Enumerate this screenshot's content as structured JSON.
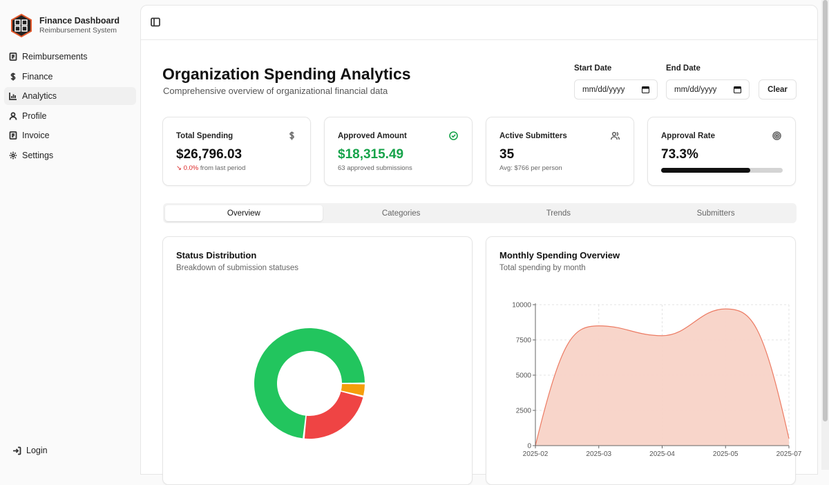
{
  "brand": {
    "title": "Finance Dashboard",
    "subtitle": "Reimbursement System"
  },
  "sidebar": {
    "items": [
      {
        "label": "Reimbursements",
        "icon": "receipt-icon"
      },
      {
        "label": "Finance",
        "icon": "dollar-icon"
      },
      {
        "label": "Analytics",
        "icon": "bar-chart-icon",
        "active": true
      },
      {
        "label": "Profile",
        "icon": "user-icon"
      },
      {
        "label": "Invoice",
        "icon": "receipt-icon"
      },
      {
        "label": "Settings",
        "icon": "gear-icon"
      }
    ],
    "login_label": "Login"
  },
  "header": {
    "title": "Organization Spending Analytics",
    "subtitle": "Comprehensive overview of organizational financial data"
  },
  "filters": {
    "start_label": "Start Date",
    "start_placeholder": "mm/dd/yyyy",
    "end_label": "End Date",
    "end_placeholder": "mm/dd/yyyy",
    "clear_label": "Clear"
  },
  "stats": {
    "total_spending": {
      "label": "Total Spending",
      "value": "$26,796.03",
      "change": "↘ 0.0%",
      "change_suffix": "from last period"
    },
    "approved_amount": {
      "label": "Approved Amount",
      "value": "$18,315.49",
      "sub": "63 approved submissions"
    },
    "active_submitters": {
      "label": "Active Submitters",
      "value": "35",
      "sub": "Avg: $766 per person"
    },
    "approval_rate": {
      "label": "Approval Rate",
      "value": "73.3%",
      "progress": 0.733
    }
  },
  "tabs": [
    "Overview",
    "Categories",
    "Trends",
    "Submitters"
  ],
  "colors": {
    "approved": "#22c55e",
    "rejected": "#ef4444",
    "pending": "#f59e0b",
    "area_fill": "#f8d3c7",
    "area_stroke": "#ec7b63"
  },
  "status_chart": {
    "title": "Status Distribution",
    "subtitle": "Breakdown of submission statuses"
  },
  "monthly_chart": {
    "title": "Monthly Spending Overview",
    "subtitle": "Total spending by month"
  },
  "chart_data": [
    {
      "type": "pie",
      "title": "Status Distribution",
      "subtitle": "Breakdown of submission statuses",
      "slices": [
        {
          "value": 73.3,
          "color": "#22c55e"
        },
        {
          "value": 22.9,
          "color": "#ef4444"
        },
        {
          "value": 3.8,
          "color": "#f59e0b"
        }
      ]
    },
    {
      "type": "area",
      "title": "Monthly Spending Overview",
      "subtitle": "Total spending by month",
      "x": [
        "2025-02",
        "2025-03",
        "2025-04",
        "2025-05",
        "2025-07"
      ],
      "y": [
        0,
        8500,
        7800,
        9700,
        500
      ],
      "ylim": [
        0,
        10000
      ],
      "yticks": [
        0,
        2500,
        5000,
        7500,
        10000
      ],
      "grid": true
    }
  ]
}
